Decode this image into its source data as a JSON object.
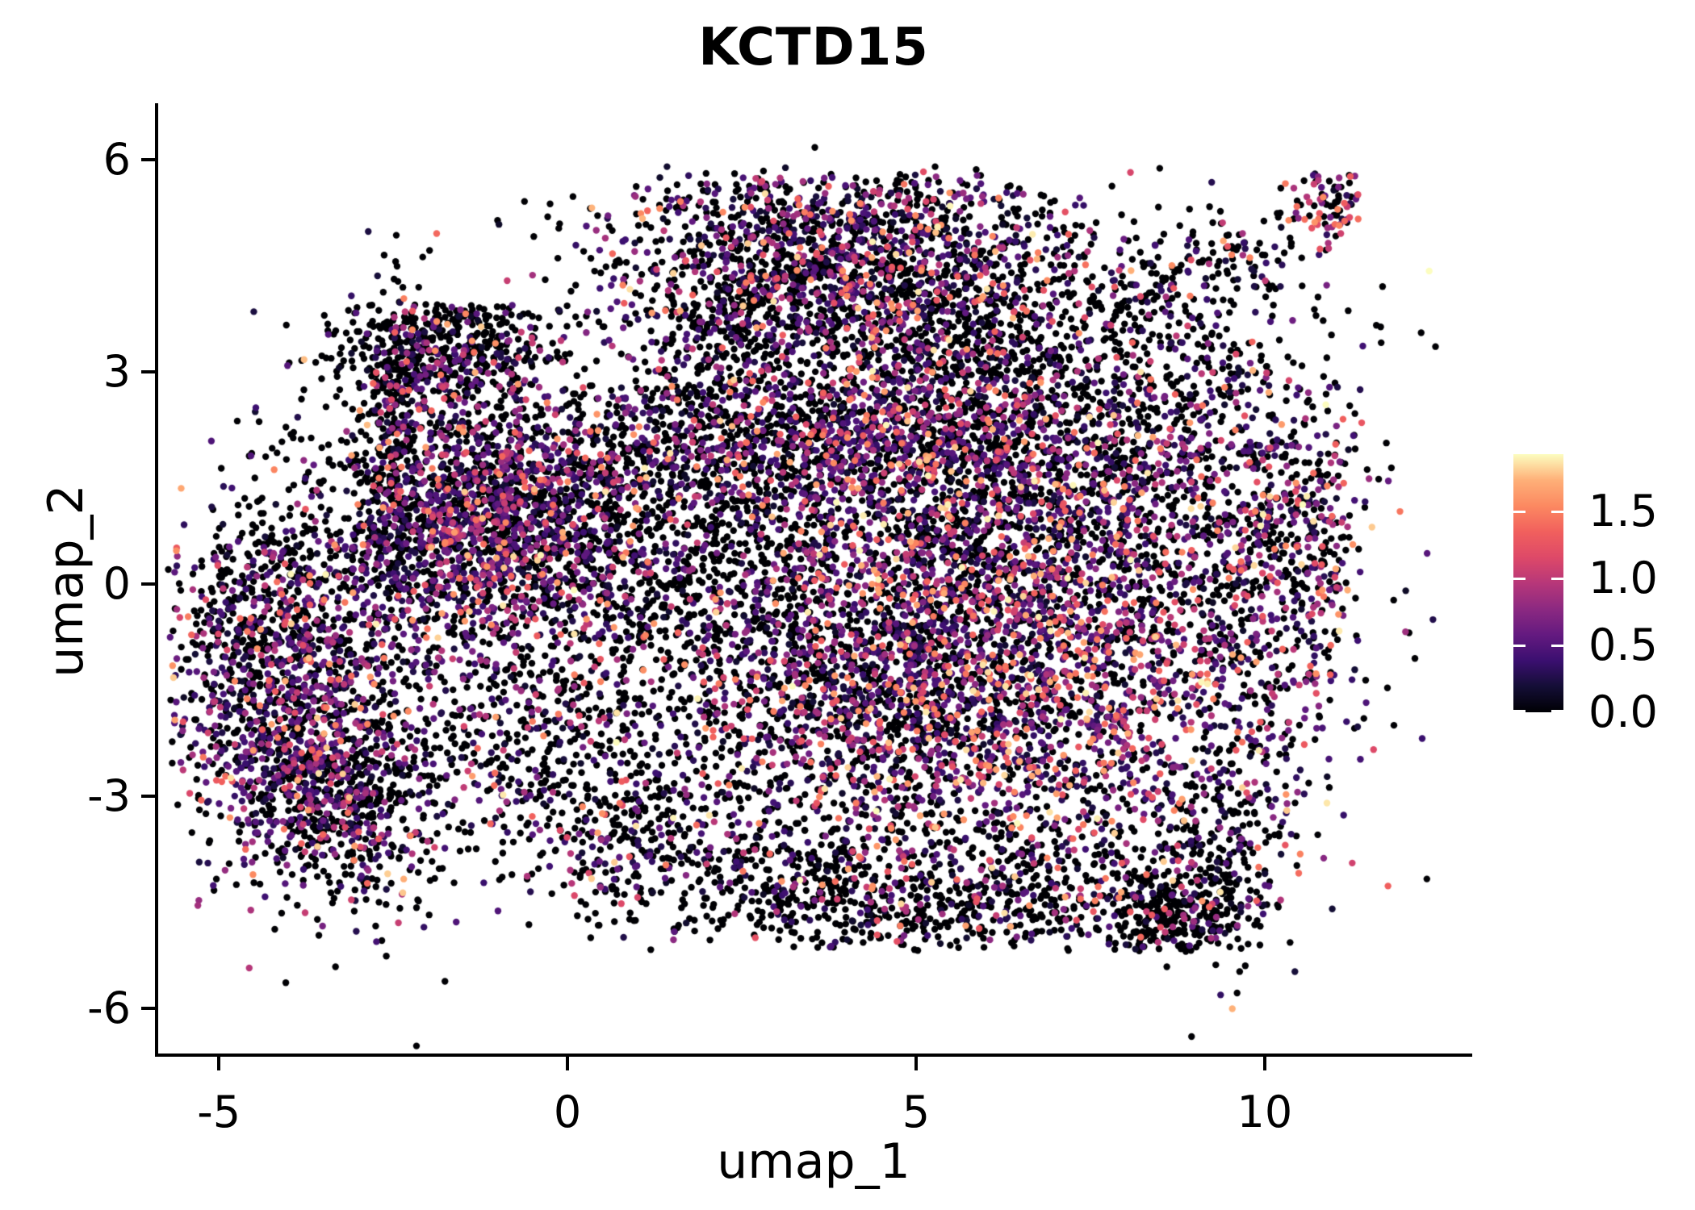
{
  "chart_data": {
    "type": "scatter",
    "title": "KCTD15",
    "xlabel": "umap_1",
    "ylabel": "umap_2",
    "x_ticks": [
      -5,
      0,
      5,
      10
    ],
    "x_tick_labels": [
      "-5",
      "0",
      "5",
      "10"
    ],
    "y_ticks": [
      -6,
      -3,
      0,
      3,
      6
    ],
    "y_tick_labels": [
      "-6",
      "-3",
      "0",
      "3",
      "6"
    ],
    "xlim": [
      -5.87,
      12.93
    ],
    "ylim": [
      -6.64,
      6.77
    ],
    "grid": false,
    "point_radius_px": 4.2,
    "seed": 42,
    "color_scale": {
      "name": "magma",
      "vmin": 0.0,
      "vmax": 1.93,
      "legend_ticks": [
        1.5,
        1.0,
        0.5,
        0.0
      ],
      "legend_tick_labels": [
        "1.5",
        "1.0",
        "0.5",
        "0.0"
      ],
      "legend_position": "right",
      "stops": [
        [
          0.0,
          "#000004"
        ],
        [
          0.1,
          "#140e36"
        ],
        [
          0.2,
          "#3b0f70"
        ],
        [
          0.3,
          "#641a80"
        ],
        [
          0.4,
          "#8c2981"
        ],
        [
          0.5,
          "#b73779"
        ],
        [
          0.6,
          "#de4968"
        ],
        [
          0.7,
          "#f1605d"
        ],
        [
          0.8,
          "#fc8961"
        ],
        [
          0.9,
          "#feb078"
        ],
        [
          1.0,
          "#fcfdbf"
        ]
      ]
    },
    "expression_value_ranges": {
      "zero": [
        0.0,
        0.0
      ],
      "low": [
        0.12,
        0.55
      ],
      "mid": [
        0.55,
        1.05
      ],
      "high": [
        1.05,
        1.6
      ],
      "vh": [
        1.6,
        1.93
      ]
    },
    "expression_profiles": {
      "black": {
        "zero": 0.78,
        "low": 0.12,
        "mid": 0.06,
        "high": 0.035,
        "vh": 0.005
      },
      "dark": {
        "zero": 0.66,
        "low": 0.2,
        "mid": 0.09,
        "high": 0.04,
        "vh": 0.01
      },
      "mix": {
        "zero": 0.52,
        "low": 0.26,
        "mid": 0.13,
        "high": 0.07,
        "vh": 0.02
      },
      "purple": {
        "zero": 0.42,
        "low": 0.32,
        "mid": 0.17,
        "high": 0.07,
        "vh": 0.02
      },
      "rich": {
        "zero": 0.38,
        "low": 0.27,
        "mid": 0.18,
        "high": 0.12,
        "vh": 0.05
      },
      "tip": {
        "zero": 0.45,
        "low": 0.1,
        "mid": 0.2,
        "high": 0.22,
        "vh": 0.03
      }
    },
    "point_cloud_model": [
      {
        "name": "dome_core",
        "cx": 4.1,
        "cy": 4.6,
        "sx": 1.55,
        "sy": 0.85,
        "n": 1500,
        "profile": "mix",
        "ymax": 5.75
      },
      {
        "name": "dome_halo",
        "cx": 4.0,
        "cy": 4.3,
        "sx": 2.2,
        "sy": 1.2,
        "n": 450,
        "profile": "dark",
        "ymax": 5.9
      },
      {
        "name": "dome_left",
        "cx": 2.4,
        "cy": 3.5,
        "sx": 0.8,
        "sy": 0.8,
        "n": 300,
        "profile": "black"
      },
      {
        "name": "band_mid",
        "cx": 3.4,
        "cy": 1.95,
        "sx": 2.5,
        "sy": 0.5,
        "n": 1200,
        "profile": "mix"
      },
      {
        "name": "midleft_dense",
        "cx": -1.45,
        "cy": 0.9,
        "sx": 1.05,
        "sy": 0.85,
        "n": 1400,
        "profile": "purple",
        "xmin": -3.1
      },
      {
        "name": "leftarm_top",
        "cx": -1.75,
        "cy": 3.35,
        "sx": 0.8,
        "sy": 0.45,
        "n": 520,
        "profile": "dark",
        "ymax": 3.95
      },
      {
        "name": "left_strip",
        "cx": -2.45,
        "cy": 2.3,
        "sx": 0.2,
        "sy": 1.05,
        "n": 240,
        "profile": "black"
      },
      {
        "name": "left_scatter",
        "cx": -3.35,
        "cy": 0.4,
        "sx": 0.85,
        "sy": 1.15,
        "n": 330,
        "profile": "black"
      },
      {
        "name": "bl_blob",
        "cx": -3.95,
        "cy": -1.6,
        "sx": 1.0,
        "sy": 1.25,
        "n": 1150,
        "profile": "purple",
        "xmin": -5.75
      },
      {
        "name": "bl_tail",
        "cx": -2.95,
        "cy": -3.35,
        "sx": 0.65,
        "sy": 0.75,
        "n": 300,
        "profile": "dark"
      },
      {
        "name": "bl_deep",
        "cx": -3.6,
        "cy": -2.9,
        "sx": 0.7,
        "sy": 0.6,
        "n": 260,
        "profile": "mix",
        "xmin": -5.6
      },
      {
        "name": "left_edge_low",
        "cx": -4.6,
        "cy": -0.6,
        "sx": 0.5,
        "sy": 0.9,
        "n": 200,
        "profile": "dark",
        "xmin": -5.8
      },
      {
        "name": "center_field",
        "cx": 1.1,
        "cy": -0.5,
        "sx": 1.5,
        "sy": 1.2,
        "n": 800,
        "profile": "dark"
      },
      {
        "name": "right_mass",
        "cx": 6.6,
        "cy": -1.3,
        "sx": 2.0,
        "sy": 1.55,
        "n": 2600,
        "profile": "rich",
        "ymin": -4.9
      },
      {
        "name": "right_upper",
        "cx": 7.0,
        "cy": 1.3,
        "sx": 1.8,
        "sy": 1.0,
        "n": 1100,
        "profile": "mix"
      },
      {
        "name": "right_col",
        "cx": 9.8,
        "cy": 0.1,
        "sx": 0.75,
        "sy": 1.5,
        "n": 450,
        "profile": "mix"
      },
      {
        "name": "right_edge",
        "cx": 10.6,
        "cy": 0.9,
        "sx": 0.5,
        "sy": 1.0,
        "n": 200,
        "profile": "mix",
        "xmax": 11.3
      },
      {
        "name": "ur_field",
        "cx": 7.9,
        "cy": 3.3,
        "sx": 1.5,
        "sy": 0.85,
        "n": 420,
        "profile": "black"
      },
      {
        "name": "tail_seg1",
        "cx": 8.4,
        "cy": 4.15,
        "sx": 0.45,
        "sy": 0.3,
        "n": 60,
        "profile": "dark"
      },
      {
        "name": "tail_seg2",
        "cx": 9.6,
        "cy": 4.6,
        "sx": 0.5,
        "sy": 0.35,
        "n": 70,
        "profile": "dark"
      },
      {
        "name": "tail_tip",
        "cx": 10.95,
        "cy": 5.35,
        "sx": 0.33,
        "sy": 0.3,
        "n": 90,
        "profile": "tip",
        "ymax": 5.8,
        "xmax": 11.35
      },
      {
        "name": "bottom_arc1",
        "cx": 1.1,
        "cy": -3.6,
        "sx": 0.9,
        "sy": 0.6,
        "n": 330,
        "profile": "dark"
      },
      {
        "name": "bottom_arc2",
        "cx": 3.5,
        "cy": -4.25,
        "sx": 1.1,
        "sy": 0.5,
        "n": 380,
        "profile": "black",
        "ymin": -5.15
      },
      {
        "name": "bottom_arc3",
        "cx": 6.3,
        "cy": -4.5,
        "sx": 1.2,
        "sy": 0.5,
        "n": 430,
        "profile": "black",
        "ymin": -5.2
      },
      {
        "name": "br_clump",
        "cx": 8.75,
        "cy": -4.7,
        "sx": 0.5,
        "sy": 0.3,
        "n": 240,
        "profile": "black",
        "ymin": -5.2
      },
      {
        "name": "br_side",
        "cx": 9.35,
        "cy": -3.8,
        "sx": 0.5,
        "sy": 0.75,
        "n": 220,
        "profile": "dark"
      },
      {
        "name": "mid_lower",
        "cx": 4.4,
        "cy": -1.8,
        "sx": 1.3,
        "sy": 0.95,
        "n": 850,
        "profile": "mix"
      },
      {
        "name": "conn_left",
        "cx": 0.0,
        "cy": 1.1,
        "sx": 0.85,
        "sy": 0.8,
        "n": 380,
        "profile": "mix"
      },
      {
        "name": "conn_center",
        "cx": 2.3,
        "cy": 0.5,
        "sx": 1.0,
        "sy": 0.9,
        "n": 380,
        "profile": "dark"
      },
      {
        "name": "conn_dome_r",
        "cx": 5.3,
        "cy": 2.9,
        "sx": 1.2,
        "sy": 0.8,
        "n": 480,
        "profile": "mix"
      },
      {
        "name": "conn_mid_r",
        "cx": 4.9,
        "cy": 0.3,
        "sx": 1.2,
        "sy": 1.0,
        "n": 520,
        "profile": "mix"
      },
      {
        "name": "conn_bl",
        "cx": -0.6,
        "cy": -2.3,
        "sx": 0.85,
        "sy": 0.85,
        "n": 360,
        "profile": "dark"
      }
    ]
  }
}
